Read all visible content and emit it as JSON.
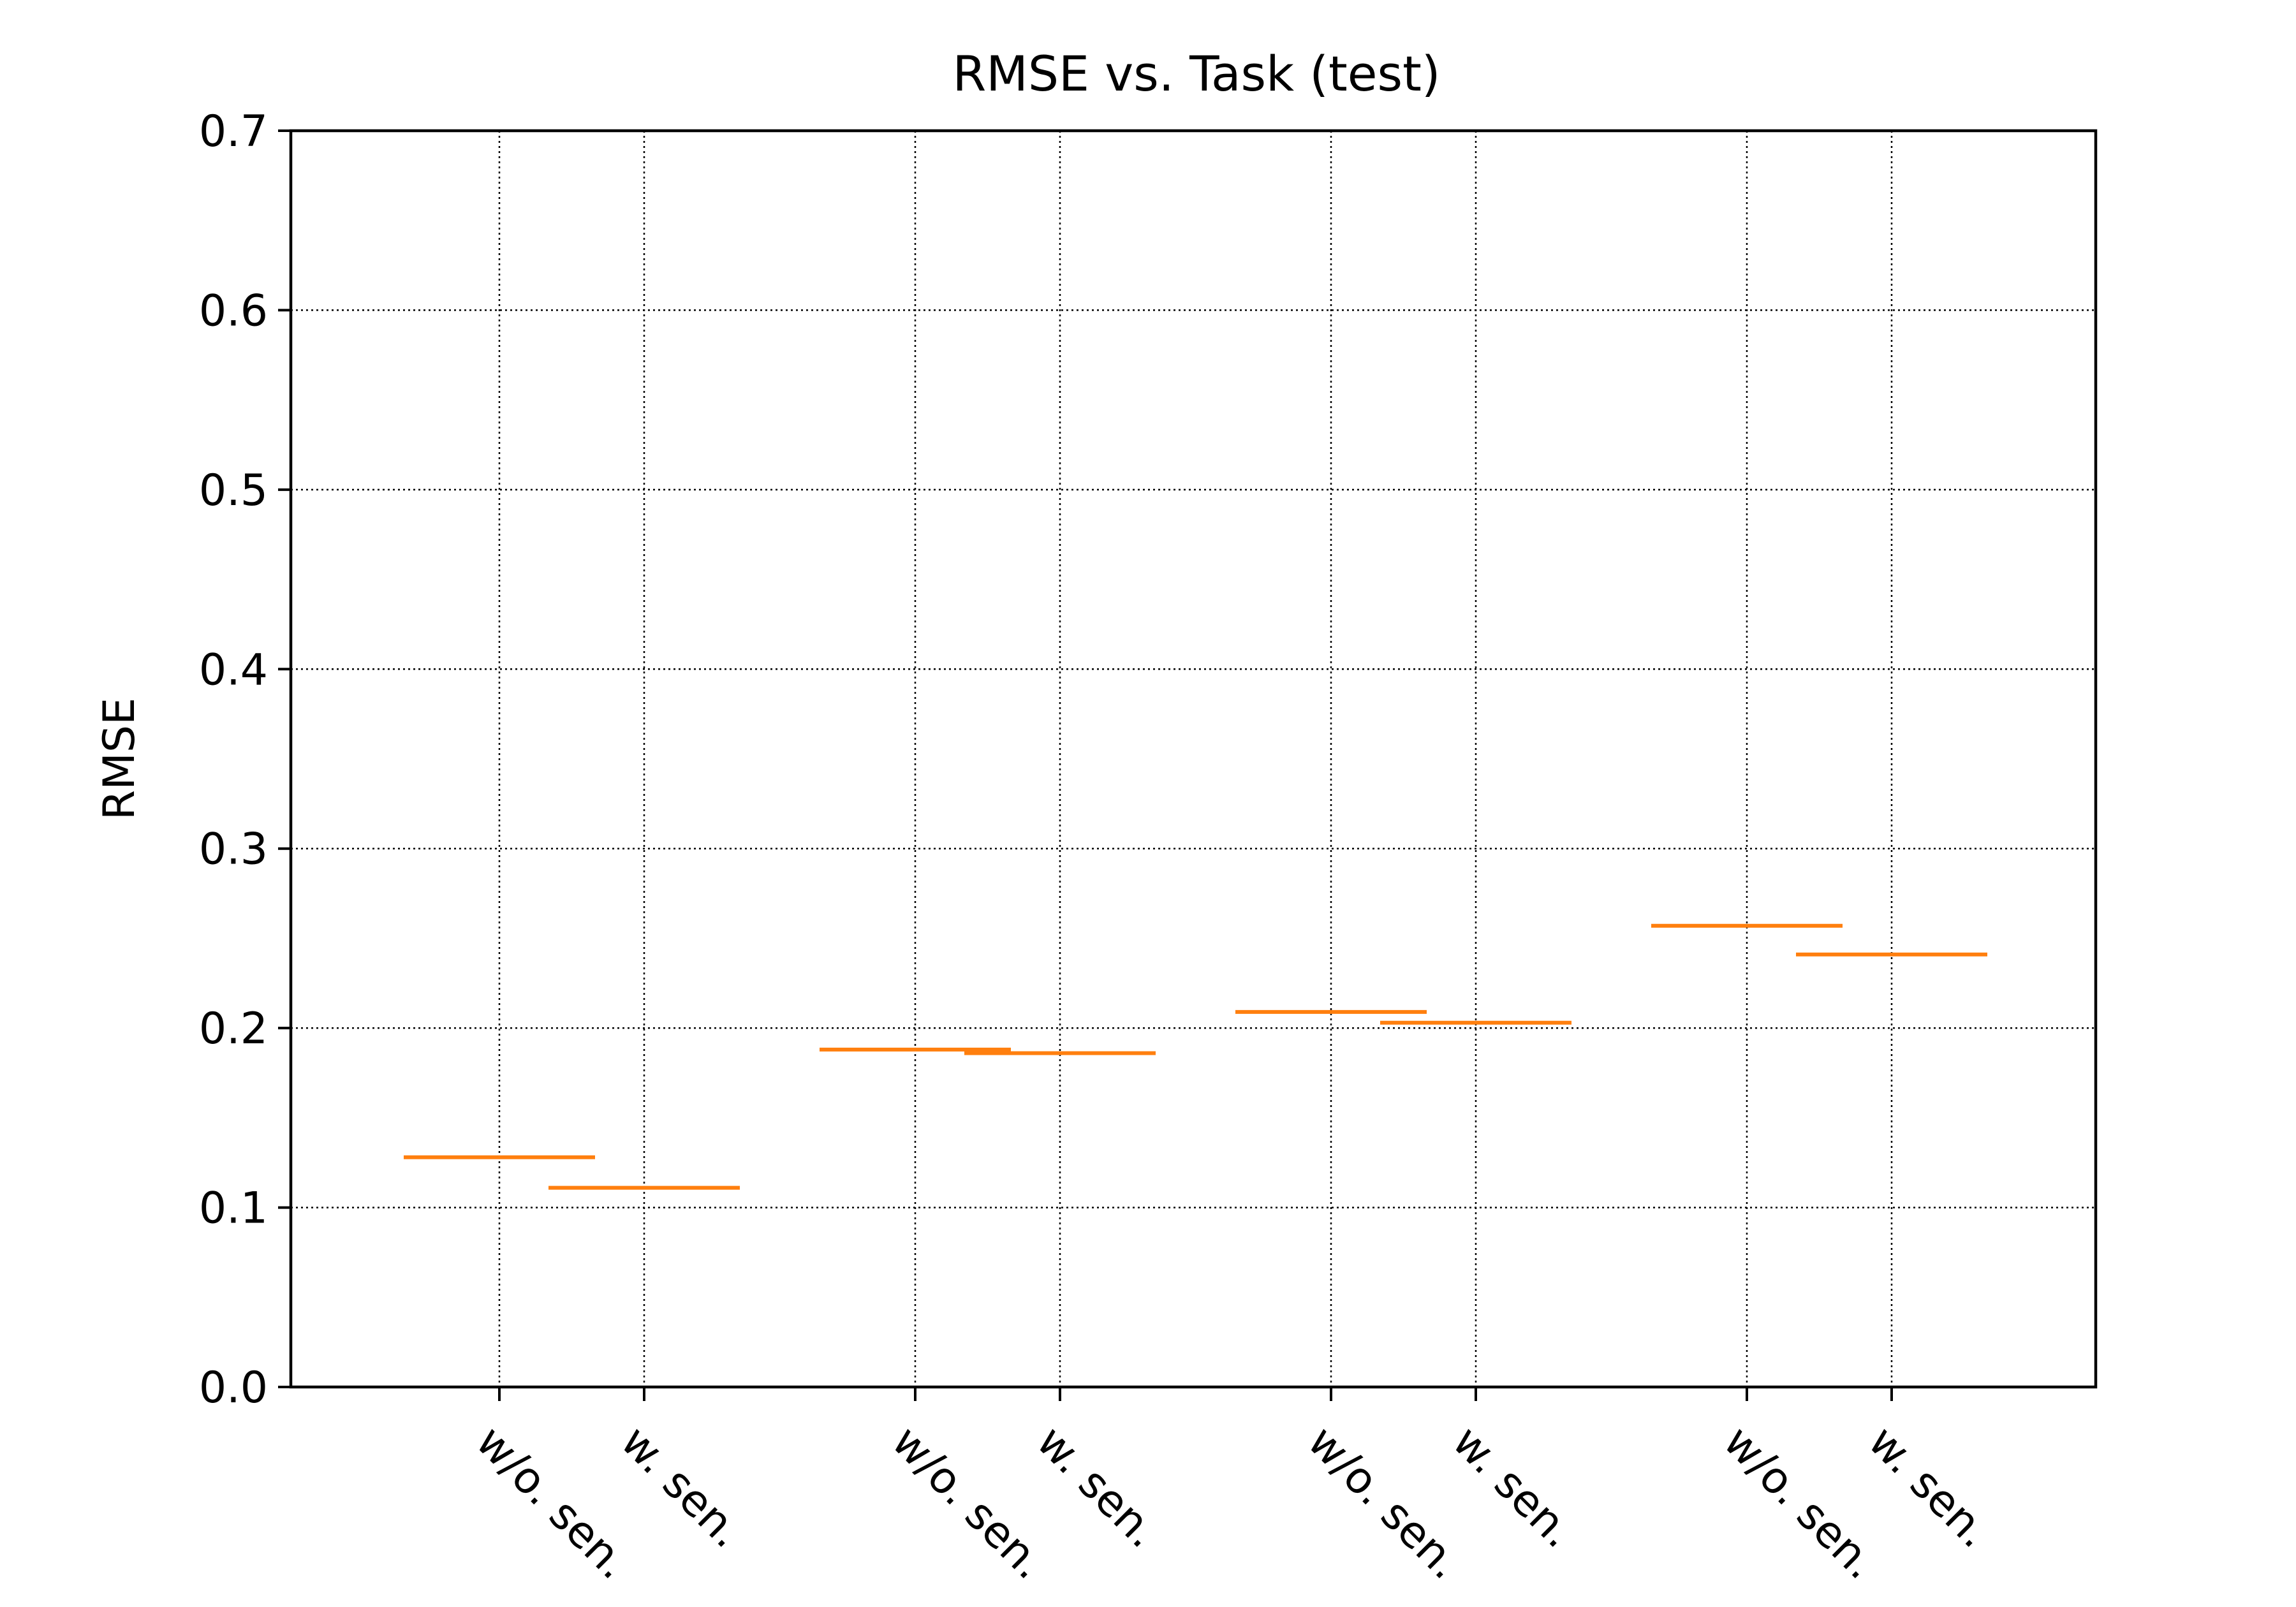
{
  "chart_data": {
    "type": "box",
    "title": "RMSE vs. Task (test)",
    "xlabel": "",
    "ylabel": "RMSE",
    "ylim": [
      0.0,
      0.7
    ],
    "yticks": [
      "0.0",
      "0.1",
      "0.2",
      "0.3",
      "0.4",
      "0.5",
      "0.6",
      "0.7"
    ],
    "grid": true,
    "grid_style": "dotted",
    "median_color": "#ff7f0e",
    "categories": [
      "w/o. sen.",
      "w. sen.",
      "w/o. sen.",
      "w. sen.",
      "w/o. sen.",
      "w. sen.",
      "w/o. sen.",
      "w. sen."
    ],
    "medians": [
      0.128,
      0.111,
      0.188,
      0.186,
      0.209,
      0.203,
      0.257,
      0.241
    ]
  }
}
